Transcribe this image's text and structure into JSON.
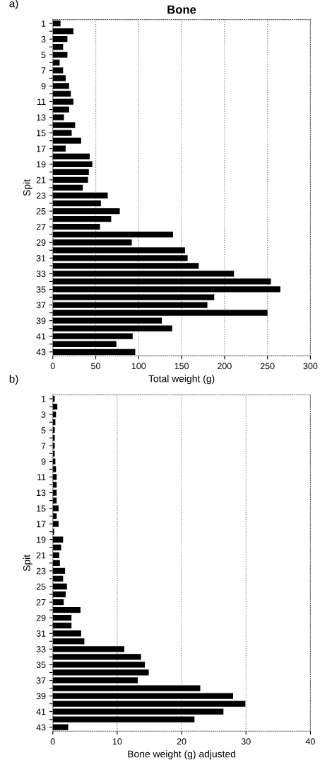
{
  "chart_data": [
    {
      "type": "bar",
      "orientation": "horizontal",
      "title": "Bone",
      "annotations": [
        "a)"
      ],
      "xlabel": "Total weight (g)",
      "ylabel": "Spit",
      "categories": [
        "1",
        null,
        "3",
        null,
        "5",
        null,
        "7",
        null,
        "9",
        null,
        "11",
        null,
        "13",
        null,
        "15",
        null,
        "17",
        null,
        "19",
        null,
        "21",
        null,
        "23",
        null,
        "25",
        null,
        "27",
        null,
        "29",
        null,
        "31",
        null,
        "33",
        null,
        "35",
        null,
        "37",
        null,
        "39",
        null,
        "41",
        null,
        "43"
      ],
      "values": [
        9,
        24,
        17,
        12,
        17,
        8,
        12,
        15,
        19,
        21,
        24,
        19,
        13,
        26,
        22,
        33,
        15,
        43,
        46,
        42,
        41,
        35,
        64,
        56,
        78,
        68,
        55,
        140,
        92,
        154,
        157,
        170,
        211,
        254,
        265,
        188,
        180,
        250,
        127,
        139,
        93,
        74,
        96
      ],
      "color": "#000000",
      "xlim": [
        0,
        300
      ],
      "xticks": [
        0,
        50,
        100,
        150,
        200,
        250,
        300
      ],
      "grid": "x"
    },
    {
      "type": "bar",
      "orientation": "horizontal",
      "annotations": [
        "b)"
      ],
      "xlabel": "Bone weight (g) adjusted",
      "ylabel": "Spit",
      "categories": [
        "1",
        null,
        "3",
        null,
        "5",
        null,
        "7",
        null,
        "9",
        null,
        "11",
        null,
        "13",
        null,
        "15",
        null,
        "17",
        null,
        "19",
        null,
        "21",
        null,
        "23",
        null,
        "25",
        null,
        "27",
        null,
        "29",
        null,
        "31",
        null,
        "33",
        null,
        "35",
        null,
        "37",
        null,
        "39",
        null,
        "41",
        null,
        "43"
      ],
      "values": [
        0.3,
        0.7,
        0.5,
        0.4,
        0.3,
        0.3,
        0.3,
        0.3,
        0.4,
        0.5,
        0.6,
        0.6,
        0.6,
        0.6,
        0.9,
        0.6,
        0.9,
        0.2,
        1.6,
        1.3,
        1.0,
        1.1,
        1.9,
        1.6,
        2.2,
        2.0,
        1.7,
        4.3,
        2.9,
        2.9,
        4.4,
        4.9,
        11.1,
        13.7,
        14.3,
        14.9,
        13.2,
        22.9,
        28.0,
        29.9,
        26.5,
        22.0,
        2.4
      ],
      "color": "#000000",
      "xlim": [
        0,
        40
      ],
      "xticks": [
        0,
        10,
        20,
        30,
        40
      ],
      "grid": "x"
    }
  ]
}
